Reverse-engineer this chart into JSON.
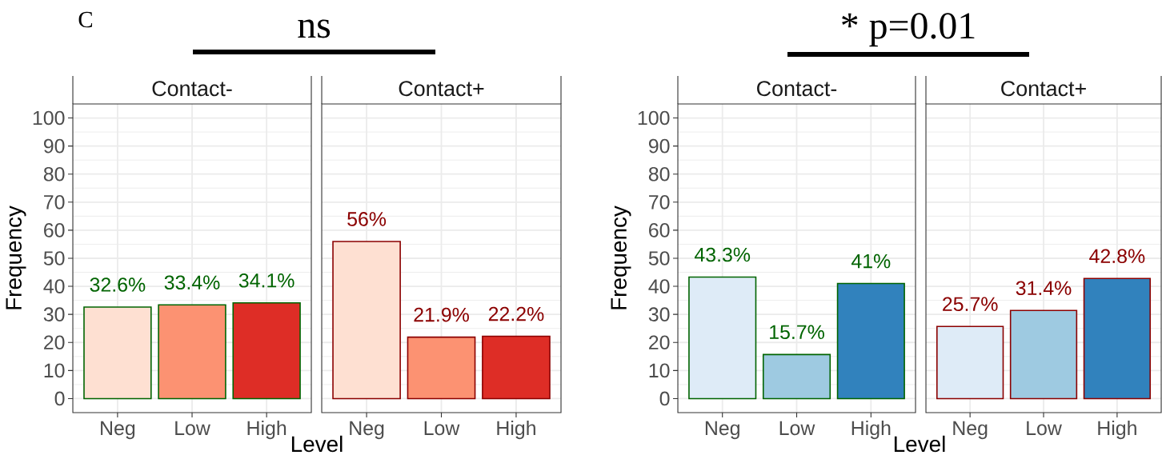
{
  "chart_data": [
    {
      "type": "bar",
      "title": "Contact-",
      "xlabel": "Level",
      "ylabel": "Frequency",
      "annotations": [
        "C",
        "ns"
      ],
      "categories": [
        "Neg",
        "Low",
        "High"
      ],
      "series": [
        {
          "color": "#006400",
          "colors": [
            "#fee0d2",
            "#fc9272",
            "#de2d26"
          ],
          "values": [
            32.6,
            33.4,
            34.1
          ],
          "value_labels": [
            "32.6%",
            "33.4%",
            "34.1%"
          ]
        }
      ],
      "ylim": [
        -5,
        105
      ],
      "yticks": [
        0,
        10,
        20,
        30,
        40,
        50,
        60,
        70,
        80,
        90,
        100
      ],
      "grid": true
    },
    {
      "type": "bar",
      "title": "Contact+",
      "categories": [
        "Neg",
        "Low",
        "High"
      ],
      "series": [
        {
          "color": "#8b0000",
          "colors": [
            "#fee0d2",
            "#fc9272",
            "#de2d26"
          ],
          "values": [
            56,
            21.9,
            22.2
          ],
          "value_labels": [
            "56%",
            "21.9%",
            "22.2%"
          ]
        }
      ],
      "ylim": [
        -5,
        105
      ],
      "yticks": [
        0,
        10,
        20,
        30,
        40,
        50,
        60,
        70,
        80,
        90,
        100
      ],
      "grid": true,
      "tick_labels": "x"
    },
    {
      "type": "bar",
      "title": "Contact-",
      "xlabel": "Level",
      "ylabel": "Frequency",
      "annotations": [
        "* p=0.01"
      ],
      "categories": [
        "Neg",
        "Low",
        "High"
      ],
      "series": [
        {
          "color": "#006400",
          "colors": [
            "#deebf7",
            "#9ecae1",
            "#3182bd"
          ],
          "values": [
            43.3,
            15.7,
            41
          ],
          "value_labels": [
            "43.3%",
            "15.7%",
            "41%"
          ]
        }
      ],
      "ylim": [
        -5,
        105
      ],
      "yticks": [
        0,
        10,
        20,
        30,
        40,
        50,
        60,
        70,
        80,
        90,
        100
      ],
      "grid": true
    },
    {
      "type": "bar",
      "title": "Contact+",
      "categories": [
        "Neg",
        "Low",
        "High"
      ],
      "series": [
        {
          "color": "#8b0000",
          "colors": [
            "#deebf7",
            "#9ecae1",
            "#3182bd"
          ],
          "values": [
            25.7,
            31.4,
            42.8
          ],
          "value_labels": [
            "25.7%",
            "31.4%",
            "42.8%"
          ]
        }
      ],
      "ylim": [
        -5,
        105
      ],
      "yticks": [
        0,
        10,
        20,
        30,
        40,
        50,
        60,
        70,
        80,
        90,
        100
      ],
      "grid": true,
      "tick_labels": "x"
    }
  ]
}
